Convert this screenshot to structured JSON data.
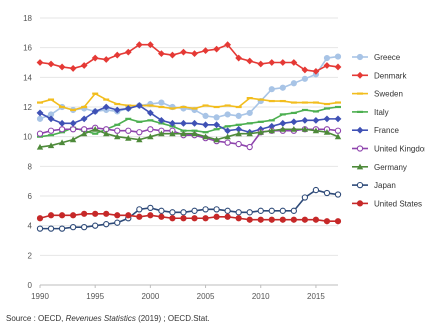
{
  "chart_data": {
    "type": "line",
    "title": "",
    "xlabel": "",
    "ylabel": "",
    "xlim": [
      1990,
      2017
    ],
    "ylim": [
      0,
      18
    ],
    "x_ticks": [
      1990,
      1995,
      2000,
      2005,
      2010,
      2015
    ],
    "y_ticks": [
      0,
      2,
      4,
      6,
      8,
      10,
      12,
      14,
      16,
      18
    ],
    "grid": "horizontal",
    "legend_position": "right",
    "x": [
      1990,
      1991,
      1992,
      1993,
      1994,
      1995,
      1996,
      1997,
      1998,
      1999,
      2000,
      2001,
      2002,
      2003,
      2004,
      2005,
      2006,
      2007,
      2008,
      2009,
      2010,
      2011,
      2012,
      2013,
      2014,
      2015,
      2016,
      2017
    ],
    "series": [
      {
        "name": "Greece",
        "color": "#a8c4e6",
        "marker": "circle-filled",
        "values": [
          11.2,
          11.5,
          12.0,
          11.8,
          11.9,
          11.7,
          11.8,
          11.7,
          11.9,
          12.1,
          12.2,
          12.3,
          12.0,
          11.9,
          11.8,
          11.4,
          11.3,
          11.5,
          11.4,
          11.6,
          12.4,
          13.2,
          13.3,
          13.6,
          13.9,
          14.2,
          15.3,
          15.4
        ]
      },
      {
        "name": "Denmark",
        "color": "#e53935",
        "marker": "diamond-filled",
        "values": [
          15.0,
          14.9,
          14.7,
          14.6,
          14.8,
          15.3,
          15.2,
          15.5,
          15.7,
          16.2,
          16.2,
          15.6,
          15.5,
          15.7,
          15.6,
          15.8,
          15.9,
          16.2,
          15.3,
          15.1,
          14.9,
          15.0,
          15.0,
          15.0,
          14.5,
          14.4,
          14.8,
          14.7
        ]
      },
      {
        "name": "Sweden",
        "color": "#f2bd1d",
        "marker": "dash",
        "values": [
          12.3,
          12.5,
          12.0,
          11.8,
          12.0,
          12.9,
          12.5,
          12.2,
          12.1,
          12.1,
          12.1,
          12.0,
          11.9,
          12.0,
          11.9,
          12.1,
          12.0,
          12.1,
          12.0,
          12.6,
          12.5,
          12.4,
          12.4,
          12.3,
          12.3,
          12.3,
          12.2,
          12.3
        ]
      },
      {
        "name": "Italy",
        "color": "#4caf50",
        "marker": "dash",
        "values": [
          10.0,
          10.1,
          10.3,
          10.6,
          10.4,
          10.2,
          10.5,
          10.8,
          11.2,
          11.0,
          11.1,
          10.9,
          10.7,
          10.4,
          10.4,
          10.3,
          10.5,
          10.7,
          10.8,
          10.9,
          11.0,
          11.1,
          11.5,
          11.6,
          11.8,
          11.7,
          11.9,
          12.0
        ]
      },
      {
        "name": "France",
        "color": "#3f51b5",
        "marker": "diamond-filled",
        "values": [
          11.6,
          11.2,
          10.9,
          10.9,
          11.2,
          11.7,
          12.0,
          11.8,
          11.9,
          12.1,
          11.6,
          11.1,
          10.9,
          10.9,
          10.9,
          10.8,
          10.8,
          10.4,
          10.5,
          10.3,
          10.5,
          10.7,
          10.9,
          11.0,
          11.1,
          11.1,
          11.2,
          11.2
        ]
      },
      {
        "name": "United Kingdom",
        "color": "#8e44ad",
        "marker": "circle-open",
        "values": [
          10.2,
          10.4,
          10.5,
          10.5,
          10.5,
          10.6,
          10.5,
          10.4,
          10.4,
          10.3,
          10.5,
          10.4,
          10.4,
          10.1,
          10.1,
          9.9,
          9.7,
          9.6,
          9.5,
          9.3,
          10.3,
          10.4,
          10.4,
          10.4,
          10.5,
          10.5,
          10.5,
          10.4
        ]
      },
      {
        "name": "Germany",
        "color": "#4e8a3a",
        "marker": "triangle-filled",
        "values": [
          9.3,
          9.4,
          9.6,
          9.8,
          10.2,
          10.5,
          10.2,
          10.0,
          9.9,
          9.8,
          10.0,
          10.2,
          10.2,
          10.2,
          10.2,
          10.0,
          9.8,
          10.0,
          10.2,
          10.2,
          10.3,
          10.4,
          10.5,
          10.5,
          10.5,
          10.4,
          10.3,
          10.0
        ]
      },
      {
        "name": "Japan",
        "color": "#2e4a78",
        "marker": "circle-open",
        "values": [
          3.8,
          3.8,
          3.8,
          3.9,
          3.9,
          4.0,
          4.1,
          4.2,
          4.5,
          5.1,
          5.2,
          5.0,
          4.9,
          4.9,
          5.0,
          5.1,
          5.1,
          5.0,
          4.9,
          4.9,
          5.0,
          5.0,
          5.0,
          5.0,
          5.9,
          6.4,
          6.2,
          6.1
        ]
      },
      {
        "name": "United States",
        "color": "#c62828",
        "marker": "circle-filled",
        "values": [
          4.5,
          4.7,
          4.7,
          4.7,
          4.8,
          4.8,
          4.8,
          4.7,
          4.7,
          4.6,
          4.7,
          4.6,
          4.5,
          4.5,
          4.5,
          4.5,
          4.6,
          4.6,
          4.5,
          4.4,
          4.4,
          4.4,
          4.4,
          4.4,
          4.4,
          4.4,
          4.3,
          4.3
        ]
      }
    ]
  },
  "source": {
    "prefix": "Source : OECD, ",
    "publication": "Revenues Statistics",
    "suffix": " (2019) ; OECD.Stat."
  }
}
